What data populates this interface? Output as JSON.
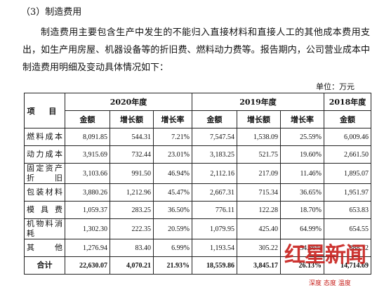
{
  "section_heading": "（3）制造费用",
  "paragraph": "制造费用主要包含生产中发生的不能归入直接材料和直接人工的其他成本费用支出，如生产用房屋、机器设备等的折旧费、燃料动力费等。报告期内，公司营业成本中制造费用明细及变动具体情况如下：",
  "unit": "单位：万元",
  "table": {
    "item_header": "项 目",
    "years": [
      "2020年度",
      "2019年度",
      "2018年度"
    ],
    "sub": {
      "amount": "金额",
      "increase": "增长额",
      "rate": "增长率"
    },
    "rows": [
      {
        "item": "燃料成本",
        "v": [
          "8,091.85",
          "544.31",
          "7.21%",
          "7,547.54",
          "1,538.09",
          "25.59%",
          "6,009.46"
        ]
      },
      {
        "item": "动力成本",
        "v": [
          "3,915.69",
          "732.44",
          "23.01%",
          "3,183.25",
          "521.75",
          "19.60%",
          "2,661.50"
        ]
      },
      {
        "item": "固定资产折旧",
        "v": [
          "3,103.66",
          "991.50",
          "46.94%",
          "2,112.16",
          "217.09",
          "11.46%",
          "1,895.07"
        ]
      },
      {
        "item": "包装材料",
        "v": [
          "3,880.26",
          "1,212.96",
          "45.47%",
          "2,667.31",
          "715.34",
          "36.65%",
          "1,951.97"
        ]
      },
      {
        "item": "模具费",
        "v": [
          "1,059.37",
          "283.25",
          "36.50%",
          "776.11",
          "122.28",
          "18.70%",
          "653.83"
        ]
      },
      {
        "item": "机物料消耗",
        "v": [
          "1,302.30",
          "222.35",
          "20.59%",
          "1,079.95",
          "425.40",
          "64.99%",
          "654.55"
        ]
      },
      {
        "item": "其他",
        "v": [
          "1,276.94",
          "83.40",
          "6.99%",
          "1,193.54",
          "305.22",
          "34.36%",
          "888.32"
        ]
      }
    ],
    "total": {
      "item": "合计",
      "v": [
        "22,630.07",
        "4,070.21",
        "21.93%",
        "18,559.86",
        "3,845.17",
        "26.13%",
        "14,714.69"
      ]
    }
  },
  "watermark": {
    "logo_text": "红星新闻",
    "sub_text": "深度 态度 温度"
  }
}
